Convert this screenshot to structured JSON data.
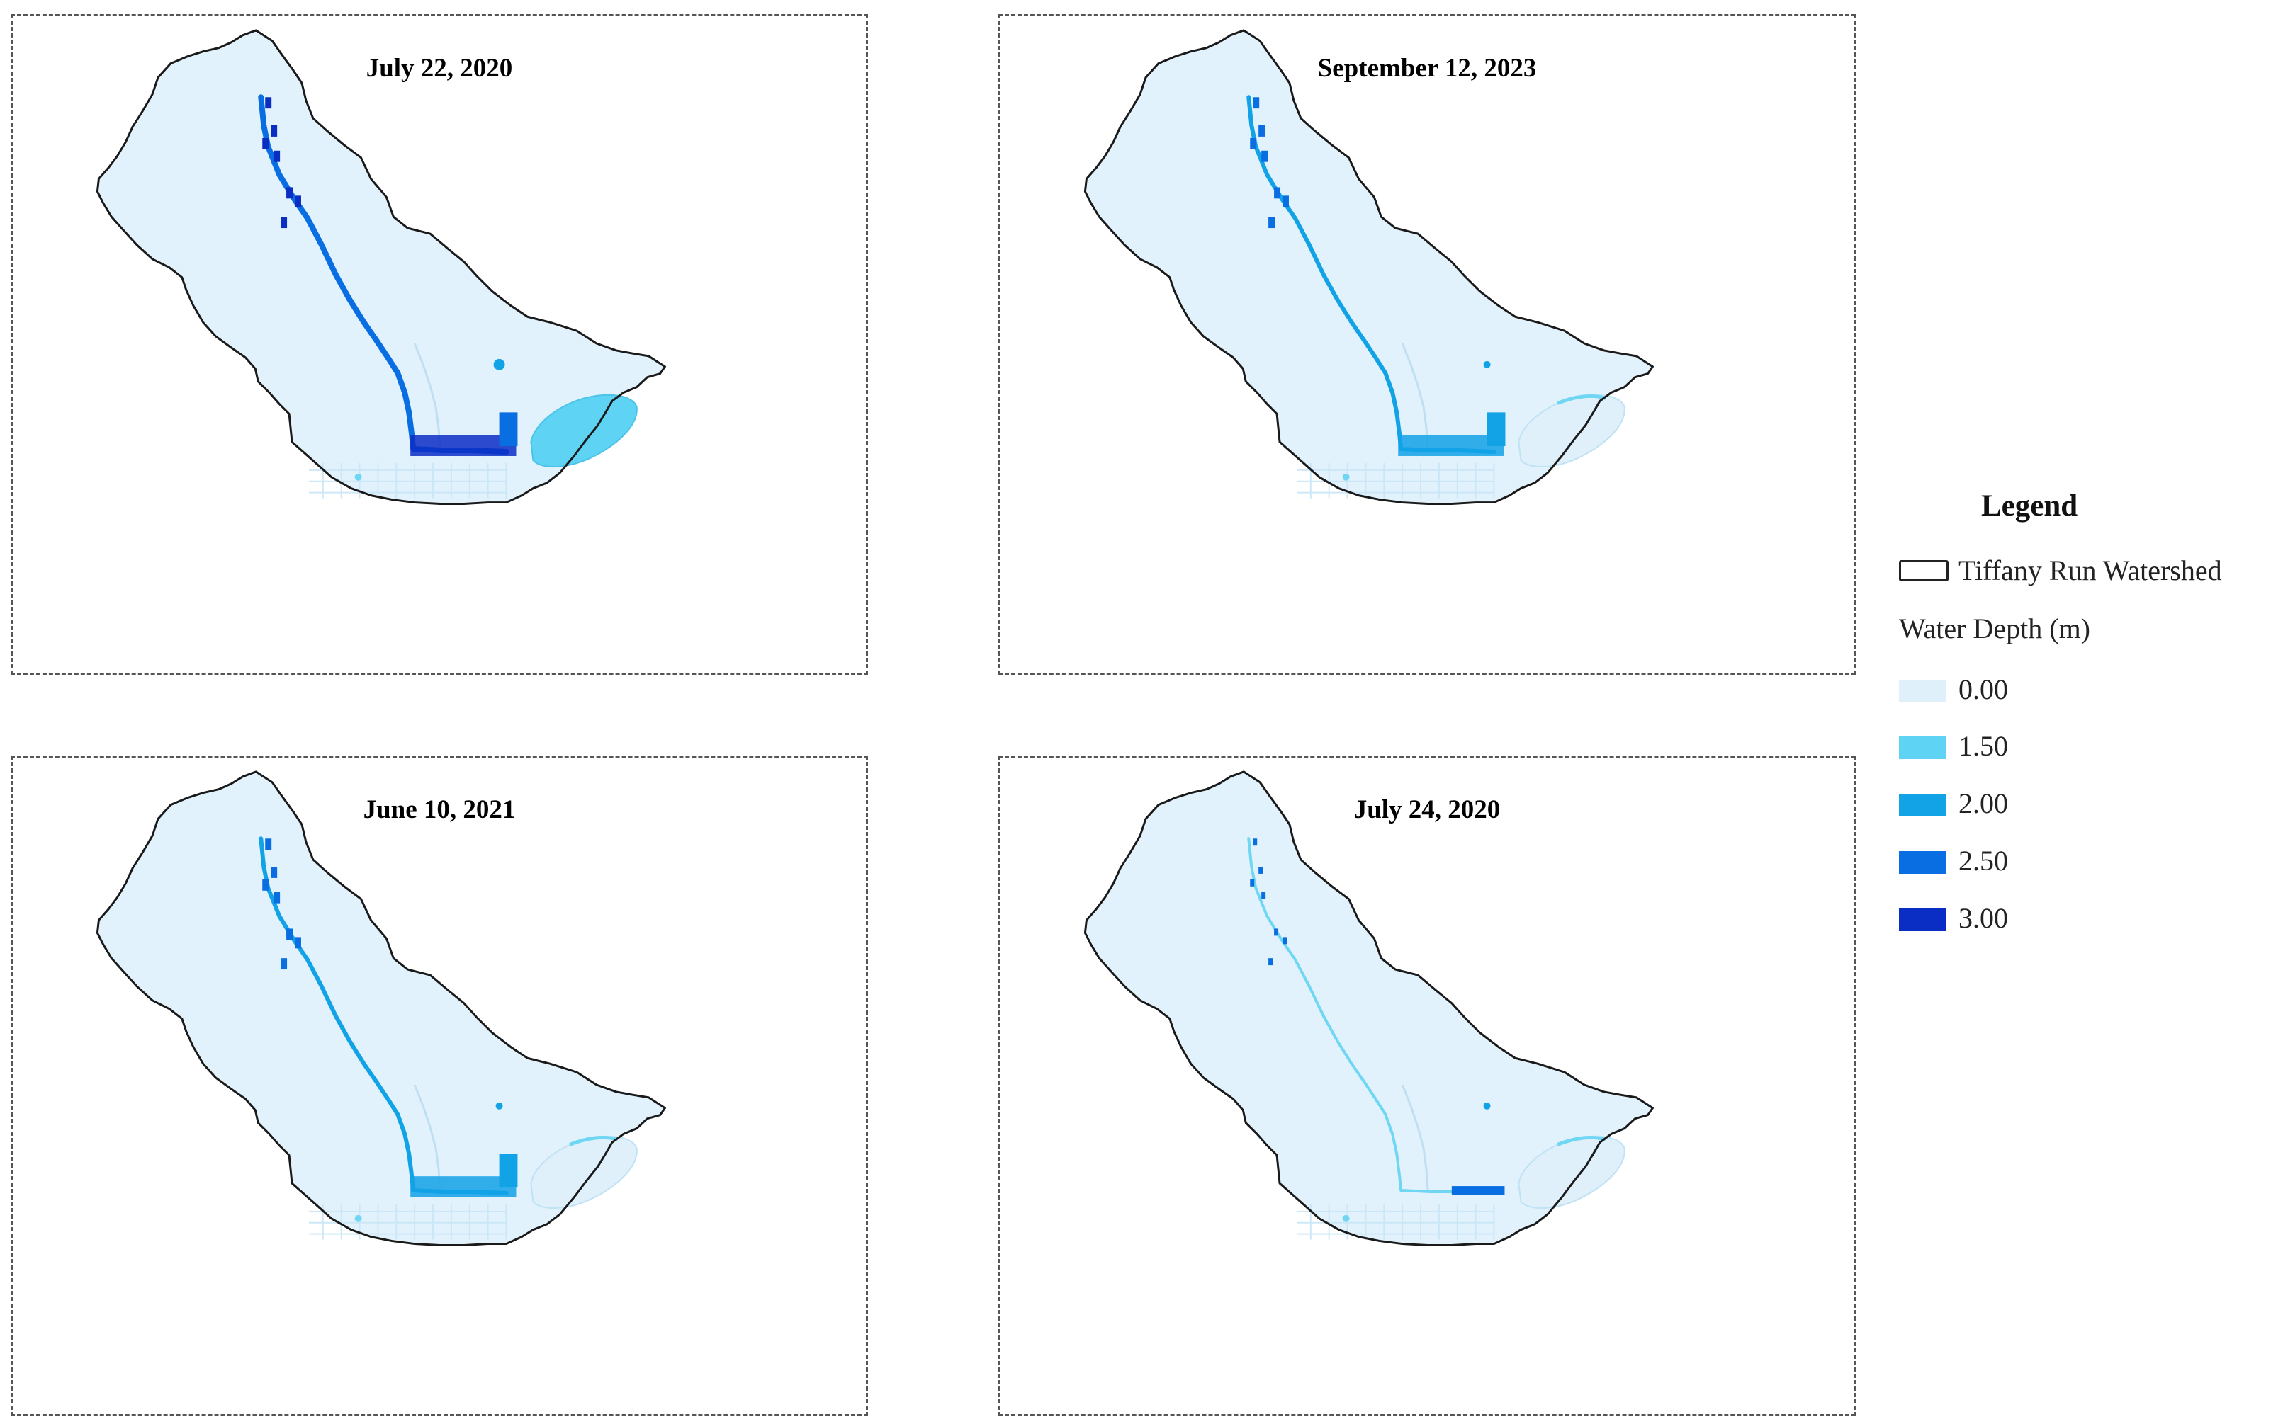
{
  "panels": [
    {
      "id": "p1",
      "title": "July 22, 2020",
      "intensity": 3
    },
    {
      "id": "p2",
      "title": "September 12, 2023",
      "intensity": 2
    },
    {
      "id": "p3",
      "title": "June 10, 2021",
      "intensity": 2
    },
    {
      "id": "p4",
      "title": "July 24, 2020",
      "intensity": 1
    }
  ],
  "legend": {
    "title": "Legend",
    "boundary_label": "Tiffany Run Watershed",
    "depth_title": "Water Depth (m)",
    "items": [
      {
        "label": "0.00",
        "color": "#dff0fb"
      },
      {
        "label": "1.50",
        "color": "#5fd3f3"
      },
      {
        "label": "2.00",
        "color": "#12a2e6"
      },
      {
        "label": "2.50",
        "color": "#0a6ee3"
      },
      {
        "label": "3.00",
        "color": "#0a2dc4"
      }
    ]
  },
  "colors": {
    "boundary": "#1a1a1a",
    "base": "#e2f2fc",
    "stream_light": "#6fd7f3",
    "stream_mid": "#12a2e6",
    "stream_deep": "#0a6ee3",
    "stream_max": "#0a2dc4",
    "lake_full": "#5fd3f3",
    "lake_low": "#dff0fb"
  }
}
